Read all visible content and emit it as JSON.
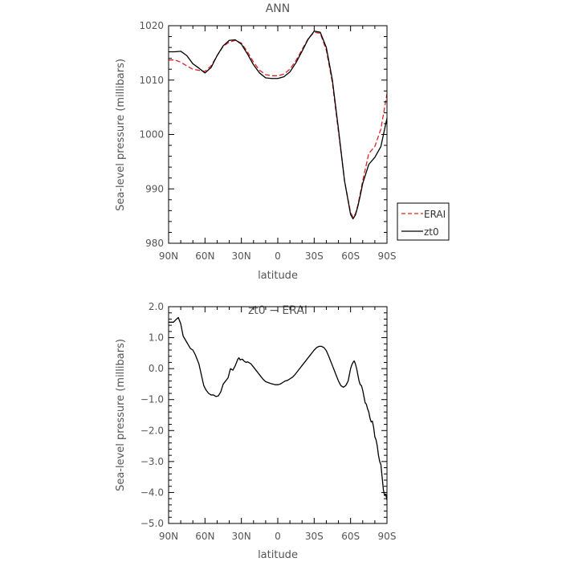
{
  "chart_data": [
    {
      "type": "line",
      "title": "ANN",
      "xlabel": "latitude",
      "ylabel": "Sea-level pressure (millibars)",
      "xlim": [
        -90,
        90
      ],
      "ylim": [
        980,
        1020
      ],
      "x_ticks": [
        -90,
        -60,
        -30,
        0,
        30,
        60,
        90
      ],
      "x_tick_labels": [
        "90N",
        "60N",
        "30N",
        "0",
        "30S",
        "60S",
        "90S"
      ],
      "y_ticks": [
        980,
        990,
        1000,
        1010,
        1020
      ],
      "y_tick_labels": [
        "980",
        "990",
        "1000",
        "1010",
        "1020"
      ],
      "grid": false,
      "legend": "right, outside plot",
      "series": [
        {
          "name": "ERAI",
          "color": "#dd2222",
          "style": "dashed",
          "x": [
            -90,
            -85,
            -80,
            -75,
            -70,
            -65,
            -60,
            -55,
            -50,
            -45,
            -40,
            -35,
            -30,
            -25,
            -20,
            -15,
            -10,
            -5,
            0,
            5,
            10,
            15,
            20,
            25,
            30,
            35,
            40,
            45,
            50,
            55,
            60,
            62,
            64,
            66,
            68,
            70,
            75,
            80,
            85,
            90
          ],
          "values": [
            1013.7,
            1013.7,
            1013.3,
            1012.6,
            1012.0,
            1011.8,
            1011.6,
            1012.6,
            1014.5,
            1016.2,
            1017.0,
            1017.3,
            1016.8,
            1015.2,
            1013.3,
            1011.8,
            1011.0,
            1010.8,
            1010.8,
            1011.1,
            1012.0,
            1013.6,
            1015.6,
            1017.6,
            1018.8,
            1018.6,
            1015.5,
            1009.5,
            1000.5,
            991.5,
            985.6,
            984.8,
            985.4,
            987.0,
            989.2,
            991.5,
            996.5,
            997.8,
            1001.0,
            1007.5
          ]
        },
        {
          "name": "zt0",
          "color": "#000000",
          "style": "solid",
          "x": [
            -90,
            -85,
            -80,
            -75,
            -70,
            -65,
            -60,
            -55,
            -50,
            -45,
            -40,
            -35,
            -30,
            -25,
            -20,
            -15,
            -10,
            -5,
            0,
            5,
            10,
            15,
            20,
            25,
            30,
            35,
            40,
            45,
            50,
            55,
            60,
            62,
            64,
            66,
            68,
            70,
            75,
            80,
            85,
            90
          ],
          "values": [
            1015.2,
            1015.2,
            1015.3,
            1014.5,
            1013.0,
            1012.2,
            1011.3,
            1012.3,
            1014.5,
            1016.3,
            1017.3,
            1017.4,
            1016.6,
            1014.8,
            1012.8,
            1011.3,
            1010.4,
            1010.3,
            1010.3,
            1010.6,
            1011.5,
            1013.2,
            1015.3,
            1017.5,
            1019.0,
            1018.8,
            1016.0,
            1010.0,
            1001.0,
            991.5,
            985.3,
            984.5,
            985.2,
            986.8,
            988.8,
            991.0,
            994.5,
            995.8,
            997.8,
            1003.0
          ]
        }
      ]
    },
    {
      "type": "line",
      "title": "zt0 − ERAI",
      "xlabel": "latitude",
      "ylabel": "Sea-level pressure (millibars)",
      "xlim": [
        -90,
        90
      ],
      "ylim": [
        -5,
        2
      ],
      "x_ticks": [
        -90,
        -60,
        -30,
        0,
        30,
        60,
        90
      ],
      "x_tick_labels": [
        "90N",
        "60N",
        "30N",
        "0",
        "30S",
        "60S",
        "90S"
      ],
      "y_ticks": [
        -5,
        -4,
        -3,
        -2,
        -1,
        0,
        1,
        2
      ],
      "y_tick_labels": [
        "−5.0",
        "−4.0",
        "−3.0",
        "−2.0",
        "−1.0",
        "0.0",
        "1.0",
        "2.0"
      ],
      "grid": false,
      "series": [
        {
          "color": "#000000",
          "style": "solid",
          "x": [
            -90,
            -86,
            -84,
            -82,
            -80,
            -78,
            -75,
            -72,
            -70,
            -68,
            -65,
            -63,
            -61,
            -59,
            -57,
            -55,
            -53,
            -51,
            -49,
            -47,
            -45,
            -43,
            -41,
            -39,
            -37,
            -35,
            -33,
            -32,
            -31,
            -30,
            -29,
            -28,
            -27,
            -26,
            -25,
            -24,
            -22,
            -20,
            -18,
            -16,
            -14,
            -12,
            -10,
            -8,
            -6,
            -4,
            -2,
            0,
            2,
            4,
            6,
            8,
            10,
            12,
            14,
            16,
            18,
            20,
            22,
            24,
            26,
            28,
            30,
            32,
            34,
            36,
            38,
            40,
            42,
            44,
            46,
            48,
            50,
            52,
            54,
            56,
            58,
            60,
            61,
            62,
            63,
            64,
            65,
            66,
            67,
            68,
            69,
            70,
            71,
            72,
            73,
            74,
            75,
            76,
            77,
            78,
            79,
            80,
            81,
            82,
            83,
            84,
            85,
            86,
            87,
            88,
            89,
            90
          ],
          "values": [
            1.5,
            1.5,
            1.58,
            1.65,
            1.45,
            1.05,
            0.85,
            0.65,
            0.6,
            0.45,
            0.15,
            -0.2,
            -0.55,
            -0.7,
            -0.8,
            -0.85,
            -0.85,
            -0.9,
            -0.88,
            -0.75,
            -0.5,
            -0.4,
            -0.3,
            0.0,
            -0.05,
            0.1,
            0.3,
            0.35,
            0.28,
            0.3,
            0.3,
            0.25,
            0.22,
            0.2,
            0.22,
            0.2,
            0.15,
            0.05,
            -0.05,
            -0.15,
            -0.25,
            -0.35,
            -0.42,
            -0.45,
            -0.48,
            -0.5,
            -0.52,
            -0.52,
            -0.5,
            -0.45,
            -0.4,
            -0.38,
            -0.33,
            -0.28,
            -0.2,
            -0.1,
            0.0,
            0.1,
            0.2,
            0.3,
            0.4,
            0.5,
            0.6,
            0.68,
            0.72,
            0.72,
            0.68,
            0.58,
            0.4,
            0.2,
            0.0,
            -0.2,
            -0.4,
            -0.55,
            -0.6,
            -0.55,
            -0.4,
            0.0,
            0.12,
            0.2,
            0.25,
            0.15,
            0.0,
            -0.2,
            -0.4,
            -0.52,
            -0.55,
            -0.7,
            -0.9,
            -1.1,
            -1.15,
            -1.3,
            -1.4,
            -1.6,
            -1.72,
            -1.7,
            -1.9,
            -2.2,
            -2.3,
            -2.5,
            -2.8,
            -3.0,
            -3.1,
            -3.5,
            -3.9,
            -4.1,
            -4.05,
            -4.25
          ]
        }
      ]
    }
  ]
}
